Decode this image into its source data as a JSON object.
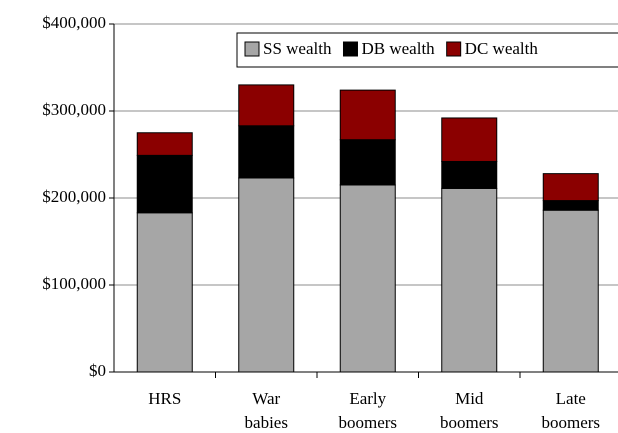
{
  "chart_data": {
    "type": "stacked_bar",
    "categories": [
      "HRS",
      "War babies",
      "Early boomers",
      "Mid boomers",
      "Late boomers"
    ],
    "series": [
      {
        "name": "SS wealth",
        "color": "#a6a6a6",
        "values": [
          183000,
          223000,
          215000,
          211000,
          186000
        ]
      },
      {
        "name": "DB wealth",
        "color": "#000000",
        "values": [
          66000,
          60000,
          52000,
          31000,
          11000
        ]
      },
      {
        "name": "DC wealth",
        "color": "#8b0000",
        "values": [
          26000,
          47000,
          57000,
          50000,
          31000
        ]
      }
    ],
    "ylim": [
      0,
      400000
    ],
    "yticks": [
      {
        "value": 0,
        "label": "$0"
      },
      {
        "value": 100000,
        "label": "$100,000"
      },
      {
        "value": 200000,
        "label": "$200,000"
      },
      {
        "value": 300000,
        "label": "$300,000"
      },
      {
        "value": 400000,
        "label": "$400,000"
      }
    ],
    "grid": true,
    "legend": "top-right"
  }
}
